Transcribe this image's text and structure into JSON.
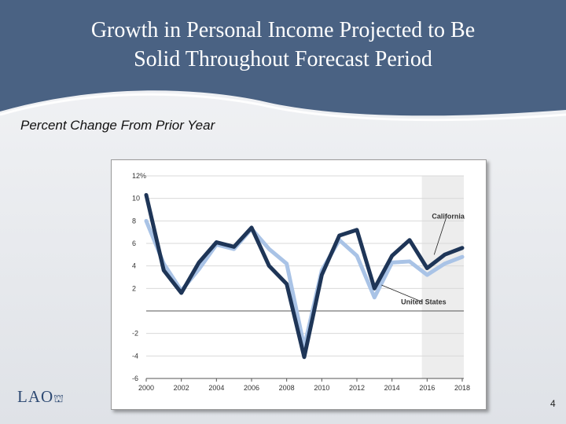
{
  "slide": {
    "title_line1": "Growth in Personal Income Projected to Be",
    "title_line2": "Solid Throughout Forecast Period",
    "subtitle": "Percent Change From Prior Year",
    "logo_text": "LAO",
    "page_number": "4"
  },
  "colors": {
    "header_blue": "#4a6283",
    "california_line": "#1e3557",
    "us_line": "#a9c3e6",
    "forecast_shade": "#ededed"
  },
  "chart_data": {
    "type": "line",
    "title": "",
    "xlabel": "",
    "ylabel": "Percent Change From Prior Year",
    "x": [
      2000,
      2001,
      2002,
      2003,
      2004,
      2005,
      2006,
      2007,
      2008,
      2009,
      2010,
      2011,
      2012,
      2013,
      2014,
      2015,
      2016,
      2017,
      2018
    ],
    "series": [
      {
        "name": "California",
        "values": [
          10.3,
          3.6,
          1.6,
          4.3,
          6.1,
          5.7,
          7.4,
          4.0,
          2.4,
          -4.1,
          3.2,
          6.7,
          7.2,
          2.0,
          4.9,
          6.3,
          3.8,
          5.0,
          5.6
        ]
      },
      {
        "name": "United States",
        "values": [
          8.0,
          4.2,
          1.8,
          3.7,
          5.9,
          5.5,
          7.3,
          5.5,
          4.2,
          -3.2,
          3.6,
          6.3,
          4.9,
          1.2,
          4.3,
          4.4,
          3.2,
          4.2,
          4.8
        ]
      }
    ],
    "xlim": [
      2000,
      2018
    ],
    "ylim": [
      -6,
      12
    ],
    "y_ticks": [
      12,
      10,
      8,
      6,
      4,
      2,
      -2,
      -4,
      -6
    ],
    "y_tick_labels": [
      "12%",
      "10",
      "8",
      "6",
      "4",
      "2",
      "-2",
      "-4",
      "-6"
    ],
    "x_ticks": [
      2000,
      2002,
      2004,
      2006,
      2008,
      2010,
      2012,
      2014,
      2016,
      2018
    ],
    "x_tick_labels": [
      "2000",
      "2002",
      "2004",
      "2006",
      "2008",
      "2010",
      "2012",
      "2014",
      "2016",
      "2018"
    ],
    "forecast_start": 2015.7,
    "annotations": [
      {
        "text": "California",
        "series": "California",
        "x": 2017.2,
        "y": 8.2,
        "target_x": 2016.4,
        "target_y": 5.0
      },
      {
        "text": "United States",
        "series": "United States",
        "x": 2015.8,
        "y": 0.6,
        "target_x": 2013.4,
        "target_y": 2.3
      }
    ],
    "grid": true
  }
}
